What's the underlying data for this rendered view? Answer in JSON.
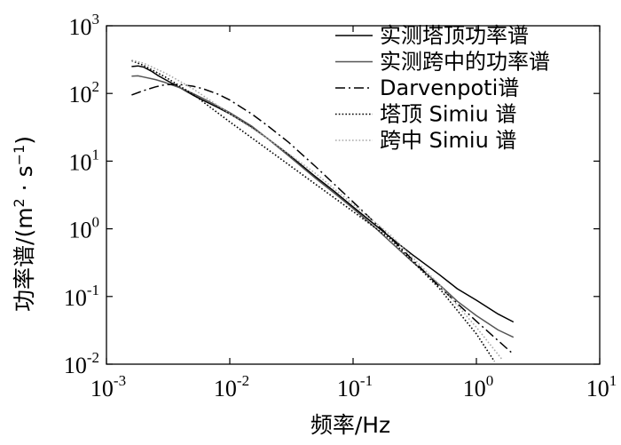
{
  "chart_data": {
    "type": "line",
    "xscale": "log",
    "yscale": "log",
    "xlim": [
      0.001,
      10
    ],
    "ylim": [
      0.01,
      1000
    ],
    "x_ticks": [
      {
        "base": "10",
        "exp": "-3"
      },
      {
        "base": "10",
        "exp": "-2"
      },
      {
        "base": "10",
        "exp": "-1"
      },
      {
        "base": "10",
        "exp": "0"
      },
      {
        "base": "10",
        "exp": "1"
      }
    ],
    "y_ticks": [
      {
        "base": "10",
        "exp": "-2"
      },
      {
        "base": "10",
        "exp": "-1"
      },
      {
        "base": "10",
        "exp": "0"
      },
      {
        "base": "10",
        "exp": "1"
      },
      {
        "base": "10",
        "exp": "2"
      },
      {
        "base": "10",
        "exp": "3"
      }
    ],
    "xlabel": "频率/Hz",
    "ylabel_prefix": "功率谱/(m",
    "ylabel_exp1": "2",
    "ylabel_mid": " · s",
    "ylabel_exp2": "−1",
    "ylabel_suffix": ")",
    "legend_position": "top-right",
    "series": [
      {
        "name": "实测塔顶功率谱",
        "color": "#000000",
        "dash": "solid",
        "x": [
          0.0016,
          0.0018,
          0.002,
          0.0023,
          0.0026,
          0.003,
          0.004,
          0.005,
          0.006,
          0.008,
          0.01,
          0.015,
          0.02,
          0.03,
          0.05,
          0.07,
          0.1,
          0.15,
          0.2,
          0.3,
          0.5,
          0.7,
          1.0,
          1.5,
          2.0
        ],
        "y": [
          250,
          255,
          245,
          215,
          185,
          160,
          120,
          95,
          80,
          62,
          50,
          32,
          22,
          12.5,
          5.8,
          3.6,
          2.1,
          1.15,
          0.75,
          0.42,
          0.21,
          0.13,
          0.088,
          0.055,
          0.042
        ]
      },
      {
        "name": "实测跨中的功率谱",
        "color": "#555555",
        "dash": "solid",
        "x": [
          0.0016,
          0.0018,
          0.002,
          0.0025,
          0.003,
          0.004,
          0.005,
          0.006,
          0.008,
          0.01,
          0.015,
          0.02,
          0.03,
          0.05,
          0.07,
          0.1,
          0.15,
          0.2,
          0.3,
          0.5,
          0.7,
          1.0,
          1.5,
          2.0
        ],
        "y": [
          180,
          182,
          175,
          160,
          145,
          120,
          100,
          85,
          65,
          52,
          33,
          22,
          12,
          5.5,
          3.4,
          2.0,
          1.05,
          0.65,
          0.33,
          0.15,
          0.085,
          0.052,
          0.032,
          0.025
        ]
      },
      {
        "name": "Darvenpoti谱",
        "color": "#000000",
        "dash": "dashdot",
        "x": [
          0.0016,
          0.002,
          0.0025,
          0.003,
          0.004,
          0.005,
          0.006,
          0.008,
          0.01,
          0.015,
          0.02,
          0.03,
          0.05,
          0.1,
          0.2,
          0.5,
          1.0,
          2.0
        ],
        "y": [
          95,
          110,
          125,
          135,
          135,
          128,
          118,
          98,
          80,
          50,
          34,
          19,
          8.2,
          2.5,
          0.75,
          0.14,
          0.043,
          0.014
        ]
      },
      {
        "name": "塔顶 Simiu 谱",
        "color": "#000000",
        "dash": "dotted",
        "x": [
          0.0016,
          0.002,
          0.003,
          0.005,
          0.01,
          0.02,
          0.05,
          0.1,
          0.2,
          0.5,
          1.0,
          1.4
        ],
        "y": [
          305,
          260,
          175,
          98,
          38,
          15.2,
          4.5,
          1.8,
          0.71,
          0.132,
          0.028,
          0.011
        ]
      },
      {
        "name": "跨中 Simiu 谱",
        "color": "#a8a8a8",
        "dash": "dotted",
        "x": [
          0.0016,
          0.002,
          0.003,
          0.005,
          0.01,
          0.02,
          0.05,
          0.1,
          0.2,
          0.5,
          1.0,
          1.6
        ],
        "y": [
          310,
          280,
          200,
          118,
          50,
          22,
          6.5,
          2.3,
          0.82,
          0.15,
          0.035,
          0.012
        ]
      }
    ]
  }
}
